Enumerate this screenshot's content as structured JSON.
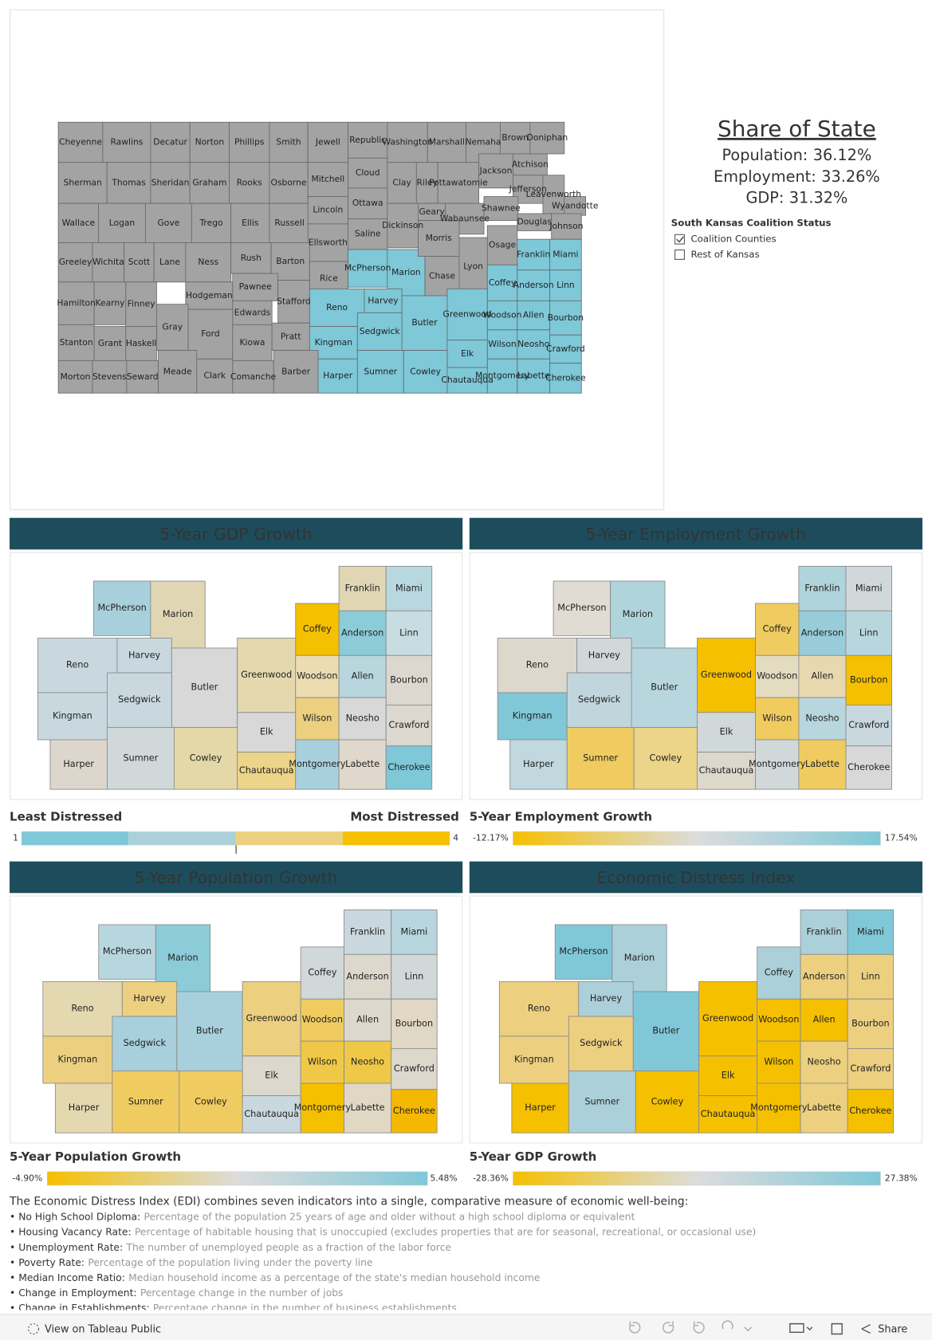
{
  "share": {
    "title": "Share of State",
    "items": [
      {
        "label": "Population:",
        "value": 36.12,
        "value_label": "36.12%"
      },
      {
        "label": "Employment:",
        "value": 33.26,
        "value_label": "33.26%"
      },
      {
        "label": "GDP:",
        "value": 31.32,
        "value_label": "31.32%"
      }
    ]
  },
  "filter": {
    "title": "South Kansas Coalition Status",
    "options": [
      {
        "label": "Coalition Counties",
        "checked": true
      },
      {
        "label": "Rest of Kansas",
        "checked": false
      }
    ]
  },
  "map": {
    "coalition_color": "#7ec8d8",
    "other_color": "#a3a3a3",
    "counties": [
      {
        "name": "Cheyenne",
        "coalition": false
      },
      {
        "name": "Rawlins",
        "coalition": false
      },
      {
        "name": "Decatur",
        "coalition": false
      },
      {
        "name": "Norton",
        "coalition": false
      },
      {
        "name": "Phillips",
        "coalition": false
      },
      {
        "name": "Smith",
        "coalition": false
      },
      {
        "name": "Jewell",
        "coalition": false
      },
      {
        "name": "Republic",
        "coalition": false
      },
      {
        "name": "Washington",
        "coalition": false
      },
      {
        "name": "Marshall",
        "coalition": false
      },
      {
        "name": "Nemaha",
        "coalition": false
      },
      {
        "name": "Brown",
        "coalition": false
      },
      {
        "name": "Doniphan",
        "coalition": false
      },
      {
        "name": "Sherman",
        "coalition": false
      },
      {
        "name": "Thomas",
        "coalition": false
      },
      {
        "name": "Sheridan",
        "coalition": false
      },
      {
        "name": "Graham",
        "coalition": false
      },
      {
        "name": "Rooks",
        "coalition": false
      },
      {
        "name": "Osborne",
        "coalition": false
      },
      {
        "name": "Mitchell",
        "coalition": false
      },
      {
        "name": "Cloud",
        "coalition": false
      },
      {
        "name": "Clay",
        "coalition": false
      },
      {
        "name": "Riley",
        "coalition": false
      },
      {
        "name": "Pottawatomie",
        "coalition": false
      },
      {
        "name": "Jackson",
        "coalition": false
      },
      {
        "name": "Atchison",
        "coalition": false
      },
      {
        "name": "Jefferson",
        "coalition": false
      },
      {
        "name": "Leavenworth",
        "coalition": false
      },
      {
        "name": "Wyandotte",
        "coalition": false
      },
      {
        "name": "Wallace",
        "coalition": false
      },
      {
        "name": "Logan",
        "coalition": false
      },
      {
        "name": "Gove",
        "coalition": false
      },
      {
        "name": "Trego",
        "coalition": false
      },
      {
        "name": "Ellis",
        "coalition": false
      },
      {
        "name": "Russell",
        "coalition": false
      },
      {
        "name": "Lincoln",
        "coalition": false
      },
      {
        "name": "Ottawa",
        "coalition": false
      },
      {
        "name": "Saline",
        "coalition": false
      },
      {
        "name": "Dickinson",
        "coalition": false
      },
      {
        "name": "Geary",
        "coalition": false
      },
      {
        "name": "Wabaunsee",
        "coalition": false
      },
      {
        "name": "Shawnee",
        "coalition": false
      },
      {
        "name": "Douglas",
        "coalition": false
      },
      {
        "name": "Johnson",
        "coalition": false
      },
      {
        "name": "Ellsworth",
        "coalition": false
      },
      {
        "name": "Greeley",
        "coalition": false
      },
      {
        "name": "Wichita",
        "coalition": false
      },
      {
        "name": "Scott",
        "coalition": false
      },
      {
        "name": "Lane",
        "coalition": false
      },
      {
        "name": "Ness",
        "coalition": false
      },
      {
        "name": "Rush",
        "coalition": false
      },
      {
        "name": "Barton",
        "coalition": false
      },
      {
        "name": "Rice",
        "coalition": false
      },
      {
        "name": "McPherson",
        "coalition": true
      },
      {
        "name": "Marion",
        "coalition": true
      },
      {
        "name": "Morris",
        "coalition": false
      },
      {
        "name": "Chase",
        "coalition": false
      },
      {
        "name": "Lyon",
        "coalition": false
      },
      {
        "name": "Osage",
        "coalition": false
      },
      {
        "name": "Franklin",
        "coalition": true
      },
      {
        "name": "Miami",
        "coalition": true
      },
      {
        "name": "Coffey",
        "coalition": true
      },
      {
        "name": "Anderson",
        "coalition": true
      },
      {
        "name": "Linn",
        "coalition": true
      },
      {
        "name": "Hamilton",
        "coalition": false
      },
      {
        "name": "Kearny",
        "coalition": false
      },
      {
        "name": "Finney",
        "coalition": false
      },
      {
        "name": "Hodgeman",
        "coalition": false
      },
      {
        "name": "Pawnee",
        "coalition": false
      },
      {
        "name": "Stafford",
        "coalition": false
      },
      {
        "name": "Reno",
        "coalition": true
      },
      {
        "name": "Harvey",
        "coalition": true
      },
      {
        "name": "Butler",
        "coalition": true
      },
      {
        "name": "Greenwood",
        "coalition": true
      },
      {
        "name": "Woodson",
        "coalition": true
      },
      {
        "name": "Allen",
        "coalition": true
      },
      {
        "name": "Bourbon",
        "coalition": true
      },
      {
        "name": "Gray",
        "coalition": false
      },
      {
        "name": "Edwards",
        "coalition": false
      },
      {
        "name": "Ford",
        "coalition": false
      },
      {
        "name": "Stanton",
        "coalition": false
      },
      {
        "name": "Grant",
        "coalition": false
      },
      {
        "name": "Haskell",
        "coalition": false
      },
      {
        "name": "Kiowa",
        "coalition": false
      },
      {
        "name": "Pratt",
        "coalition": false
      },
      {
        "name": "Kingman",
        "coalition": true
      },
      {
        "name": "Sedgwick",
        "coalition": true
      },
      {
        "name": "Elk",
        "coalition": true
      },
      {
        "name": "Wilson",
        "coalition": true
      },
      {
        "name": "Neosho",
        "coalition": true
      },
      {
        "name": "Crawford",
        "coalition": true
      },
      {
        "name": "Morton",
        "coalition": false
      },
      {
        "name": "Stevens",
        "coalition": false
      },
      {
        "name": "Seward",
        "coalition": false
      },
      {
        "name": "Meade",
        "coalition": false
      },
      {
        "name": "Clark",
        "coalition": false
      },
      {
        "name": "Comanche",
        "coalition": false
      },
      {
        "name": "Barber",
        "coalition": false
      },
      {
        "name": "Harper",
        "coalition": true
      },
      {
        "name": "Sumner",
        "coalition": true
      },
      {
        "name": "Cowley",
        "coalition": true
      },
      {
        "name": "Chautauqua",
        "coalition": true
      },
      {
        "name": "Montgomery",
        "coalition": true
      },
      {
        "name": "Labette",
        "coalition": true
      },
      {
        "name": "Cherokee",
        "coalition": true
      }
    ]
  },
  "panels": [
    {
      "title": "5-Year GDP Growth",
      "counties": [
        {
          "name": "McPherson",
          "color": "#a8d0dc"
        },
        {
          "name": "Marion",
          "color": "#e0d6b4"
        },
        {
          "name": "Franklin",
          "color": "#e0d6b4"
        },
        {
          "name": "Miami",
          "color": "#b8d8e0"
        },
        {
          "name": "Coffey",
          "color": "#f5c000"
        },
        {
          "name": "Anderson",
          "color": "#8ccbd8"
        },
        {
          "name": "Linn",
          "color": "#c8dde2"
        },
        {
          "name": "Reno",
          "color": "#c8d8de"
        },
        {
          "name": "Harvey",
          "color": "#c8d8de"
        },
        {
          "name": "Butler",
          "color": "#d8d8d8"
        },
        {
          "name": "Greenwood",
          "color": "#e4d8ae"
        },
        {
          "name": "Woodson",
          "color": "#ecdcb0"
        },
        {
          "name": "Allen",
          "color": "#b8d6de"
        },
        {
          "name": "Bourbon",
          "color": "#dcd8d0"
        },
        {
          "name": "Kingman",
          "color": "#c8d8de"
        },
        {
          "name": "Sedgwick",
          "color": "#c8d8de"
        },
        {
          "name": "Elk",
          "color": "#d8d8d8"
        },
        {
          "name": "Wilson",
          "color": "#ecd080"
        },
        {
          "name": "Neosho",
          "color": "#d8d8d8"
        },
        {
          "name": "Crawford",
          "color": "#dcd8d0"
        },
        {
          "name": "Harper",
          "color": "#ddd6cc"
        },
        {
          "name": "Sumner",
          "color": "#d0d8da"
        },
        {
          "name": "Cowley",
          "color": "#e4d8a8"
        },
        {
          "name": "Chautauqua",
          "color": "#ecd488"
        },
        {
          "name": "Montgomery",
          "color": "#a8d0dc"
        },
        {
          "name": "Labette",
          "color": "#e0d8cc"
        },
        {
          "name": "Cherokee",
          "color": "#7ec8d8"
        }
      ]
    },
    {
      "title": "5-Year Employment Growth",
      "counties": [
        {
          "name": "McPherson",
          "color": "#e0dcd4"
        },
        {
          "name": "Marion",
          "color": "#b0d4dc"
        },
        {
          "name": "Franklin",
          "color": "#b0d4dc"
        },
        {
          "name": "Miami",
          "color": "#d0d8da"
        },
        {
          "name": "Coffey",
          "color": "#f0cc60"
        },
        {
          "name": "Anderson",
          "color": "#98ccd8"
        },
        {
          "name": "Linn",
          "color": "#b8d6de"
        },
        {
          "name": "Reno",
          "color": "#dcd8cc"
        },
        {
          "name": "Harvey",
          "color": "#d0d8da"
        },
        {
          "name": "Butler",
          "color": "#b8d6de"
        },
        {
          "name": "Greenwood",
          "color": "#f5c000"
        },
        {
          "name": "Woodson",
          "color": "#e4dcc0"
        },
        {
          "name": "Allen",
          "color": "#e8d8b0"
        },
        {
          "name": "Bourbon",
          "color": "#f5c000"
        },
        {
          "name": "Kingman",
          "color": "#80c8d8"
        },
        {
          "name": "Sedgwick",
          "color": "#c0d6dc"
        },
        {
          "name": "Elk",
          "color": "#d0d8da"
        },
        {
          "name": "Wilson",
          "color": "#f0cc60"
        },
        {
          "name": "Neosho",
          "color": "#b8d6de"
        },
        {
          "name": "Crawford",
          "color": "#c8d8de"
        },
        {
          "name": "Harper",
          "color": "#c0d8de"
        },
        {
          "name": "Sumner",
          "color": "#f0cc60"
        },
        {
          "name": "Cowley",
          "color": "#ecd488"
        },
        {
          "name": "Chautauqua",
          "color": "#dcd8cc"
        },
        {
          "name": "Montgomery",
          "color": "#d0d8da"
        },
        {
          "name": "Labette",
          "color": "#f0cc60"
        },
        {
          "name": "Cherokee",
          "color": "#d8d8d8"
        }
      ]
    },
    {
      "title": "5-Year Population Growth",
      "counties": [
        {
          "name": "McPherson",
          "color": "#b8d6de"
        },
        {
          "name": "Marion",
          "color": "#8ccbd8"
        },
        {
          "name": "Franklin",
          "color": "#c8d8de"
        },
        {
          "name": "Miami",
          "color": "#b8d6de"
        },
        {
          "name": "Coffey",
          "color": "#d0d8da"
        },
        {
          "name": "Anderson",
          "color": "#dcd8cc"
        },
        {
          "name": "Linn",
          "color": "#d0d8da"
        },
        {
          "name": "Reno",
          "color": "#e4d8b0"
        },
        {
          "name": "Harvey",
          "color": "#ecd080"
        },
        {
          "name": "Butler",
          "color": "#a8d0dc"
        },
        {
          "name": "Greenwood",
          "color": "#ecd080"
        },
        {
          "name": "Woodson",
          "color": "#f0cc60"
        },
        {
          "name": "Allen",
          "color": "#dcd8cc"
        },
        {
          "name": "Bourbon",
          "color": "#e0d8c4"
        },
        {
          "name": "Kingman",
          "color": "#ecd080"
        },
        {
          "name": "Sedgwick",
          "color": "#a8d0dc"
        },
        {
          "name": "Elk",
          "color": "#dcd8cc"
        },
        {
          "name": "Wilson",
          "color": "#f0c848"
        },
        {
          "name": "Neosho",
          "color": "#f0c848"
        },
        {
          "name": "Crawford",
          "color": "#dcd8cc"
        },
        {
          "name": "Harper",
          "color": "#e4d8b0"
        },
        {
          "name": "Sumner",
          "color": "#f0cc60"
        },
        {
          "name": "Cowley",
          "color": "#f0cc60"
        },
        {
          "name": "Chautauqua",
          "color": "#c8d8de"
        },
        {
          "name": "Montgomery",
          "color": "#f5c000"
        },
        {
          "name": "Labette",
          "color": "#e0d8c4"
        },
        {
          "name": "Cherokee",
          "color": "#f5b800"
        }
      ]
    },
    {
      "title": "Economic Distress Index",
      "counties": [
        {
          "name": "McPherson",
          "color": "#80c8d8"
        },
        {
          "name": "Marion",
          "color": "#acd0da"
        },
        {
          "name": "Franklin",
          "color": "#acd0da"
        },
        {
          "name": "Miami",
          "color": "#80c8d8"
        },
        {
          "name": "Coffey",
          "color": "#acd0da"
        },
        {
          "name": "Anderson",
          "color": "#ecd080"
        },
        {
          "name": "Linn",
          "color": "#ecd080"
        },
        {
          "name": "Reno",
          "color": "#ecd080"
        },
        {
          "name": "Harvey",
          "color": "#acd0da"
        },
        {
          "name": "Butler",
          "color": "#80c8d8"
        },
        {
          "name": "Greenwood",
          "color": "#f5c000"
        },
        {
          "name": "Woodson",
          "color": "#f5c000"
        },
        {
          "name": "Allen",
          "color": "#f5c000"
        },
        {
          "name": "Bourbon",
          "color": "#ecd080"
        },
        {
          "name": "Kingman",
          "color": "#ecd080"
        },
        {
          "name": "Sedgwick",
          "color": "#ecd080"
        },
        {
          "name": "Elk",
          "color": "#f5c000"
        },
        {
          "name": "Wilson",
          "color": "#f5c000"
        },
        {
          "name": "Neosho",
          "color": "#ecd080"
        },
        {
          "name": "Crawford",
          "color": "#ecd080"
        },
        {
          "name": "Harper",
          "color": "#f5c000"
        },
        {
          "name": "Sumner",
          "color": "#acd0da"
        },
        {
          "name": "Cowley",
          "color": "#f5c000"
        },
        {
          "name": "Chautauqua",
          "color": "#f5c000"
        },
        {
          "name": "Montgomery",
          "color": "#f5c000"
        },
        {
          "name": "Labette",
          "color": "#ecd080"
        },
        {
          "name": "Cherokee",
          "color": "#f5c000"
        }
      ]
    }
  ],
  "legends": {
    "edi": {
      "low_label": "Least Distressed",
      "high_label": "Most Distressed",
      "min": 1,
      "max": 4,
      "colors": [
        "#80c8d8",
        "#acd0da",
        "#ecd080",
        "#f5c000"
      ]
    },
    "employment": {
      "title": "5-Year Employment Growth",
      "min": {
        "value": -12.17,
        "label": "-12.17%"
      },
      "max": {
        "value": 17.54,
        "label": "17.54%"
      },
      "colors": [
        "#f5c000",
        "#dcdcdc",
        "#80c8d8"
      ]
    },
    "population": {
      "title": "5-Year Population Growth",
      "min": {
        "value": -4.9,
        "label": "-4.90%"
      },
      "max": {
        "value": 5.48,
        "label": "5.48%"
      },
      "colors": [
        "#f5c000",
        "#dcdcdc",
        "#80c8d8"
      ]
    },
    "gdp": {
      "title": "5-Year GDP Growth",
      "min": {
        "value": -28.36,
        "label": "-28.36%"
      },
      "max": {
        "value": 27.38,
        "label": "27.38%"
      },
      "colors": [
        "#f5c000",
        "#dcdcdc",
        "#80c8d8"
      ]
    }
  },
  "description": {
    "intro": "The Economic Distress Index (EDI) combines seven indicators into a single, comparative measure of economic well-being:",
    "items": [
      {
        "term": "No High School Diploma:",
        "text": "Percentage of the population 25 years of age and older without a high school diploma or equivalent"
      },
      {
        "term": "Housing Vacancy Rate:",
        "text": "Percentage of habitable housing that is unoccupied (excludes properties that are for seasonal, recreational, or occasional use)"
      },
      {
        "term": "Unemployment Rate:",
        "text": "The number of unemployed people as a fraction of the labor force"
      },
      {
        "term": "Poverty Rate:",
        "text": "Percentage of the population living under the poverty line"
      },
      {
        "term": "Median Income Ratio:",
        "text": "Median household income as a percentage of the state's median household income"
      },
      {
        "term": "Change in Employment:",
        "text": "Percentage change in the number of jobs"
      },
      {
        "term": "Change in Establishments:",
        "text": "Percentage change in the number of business establishments"
      }
    ]
  },
  "toolbar": {
    "view_link": "View on Tableau Public",
    "share": "Share"
  }
}
